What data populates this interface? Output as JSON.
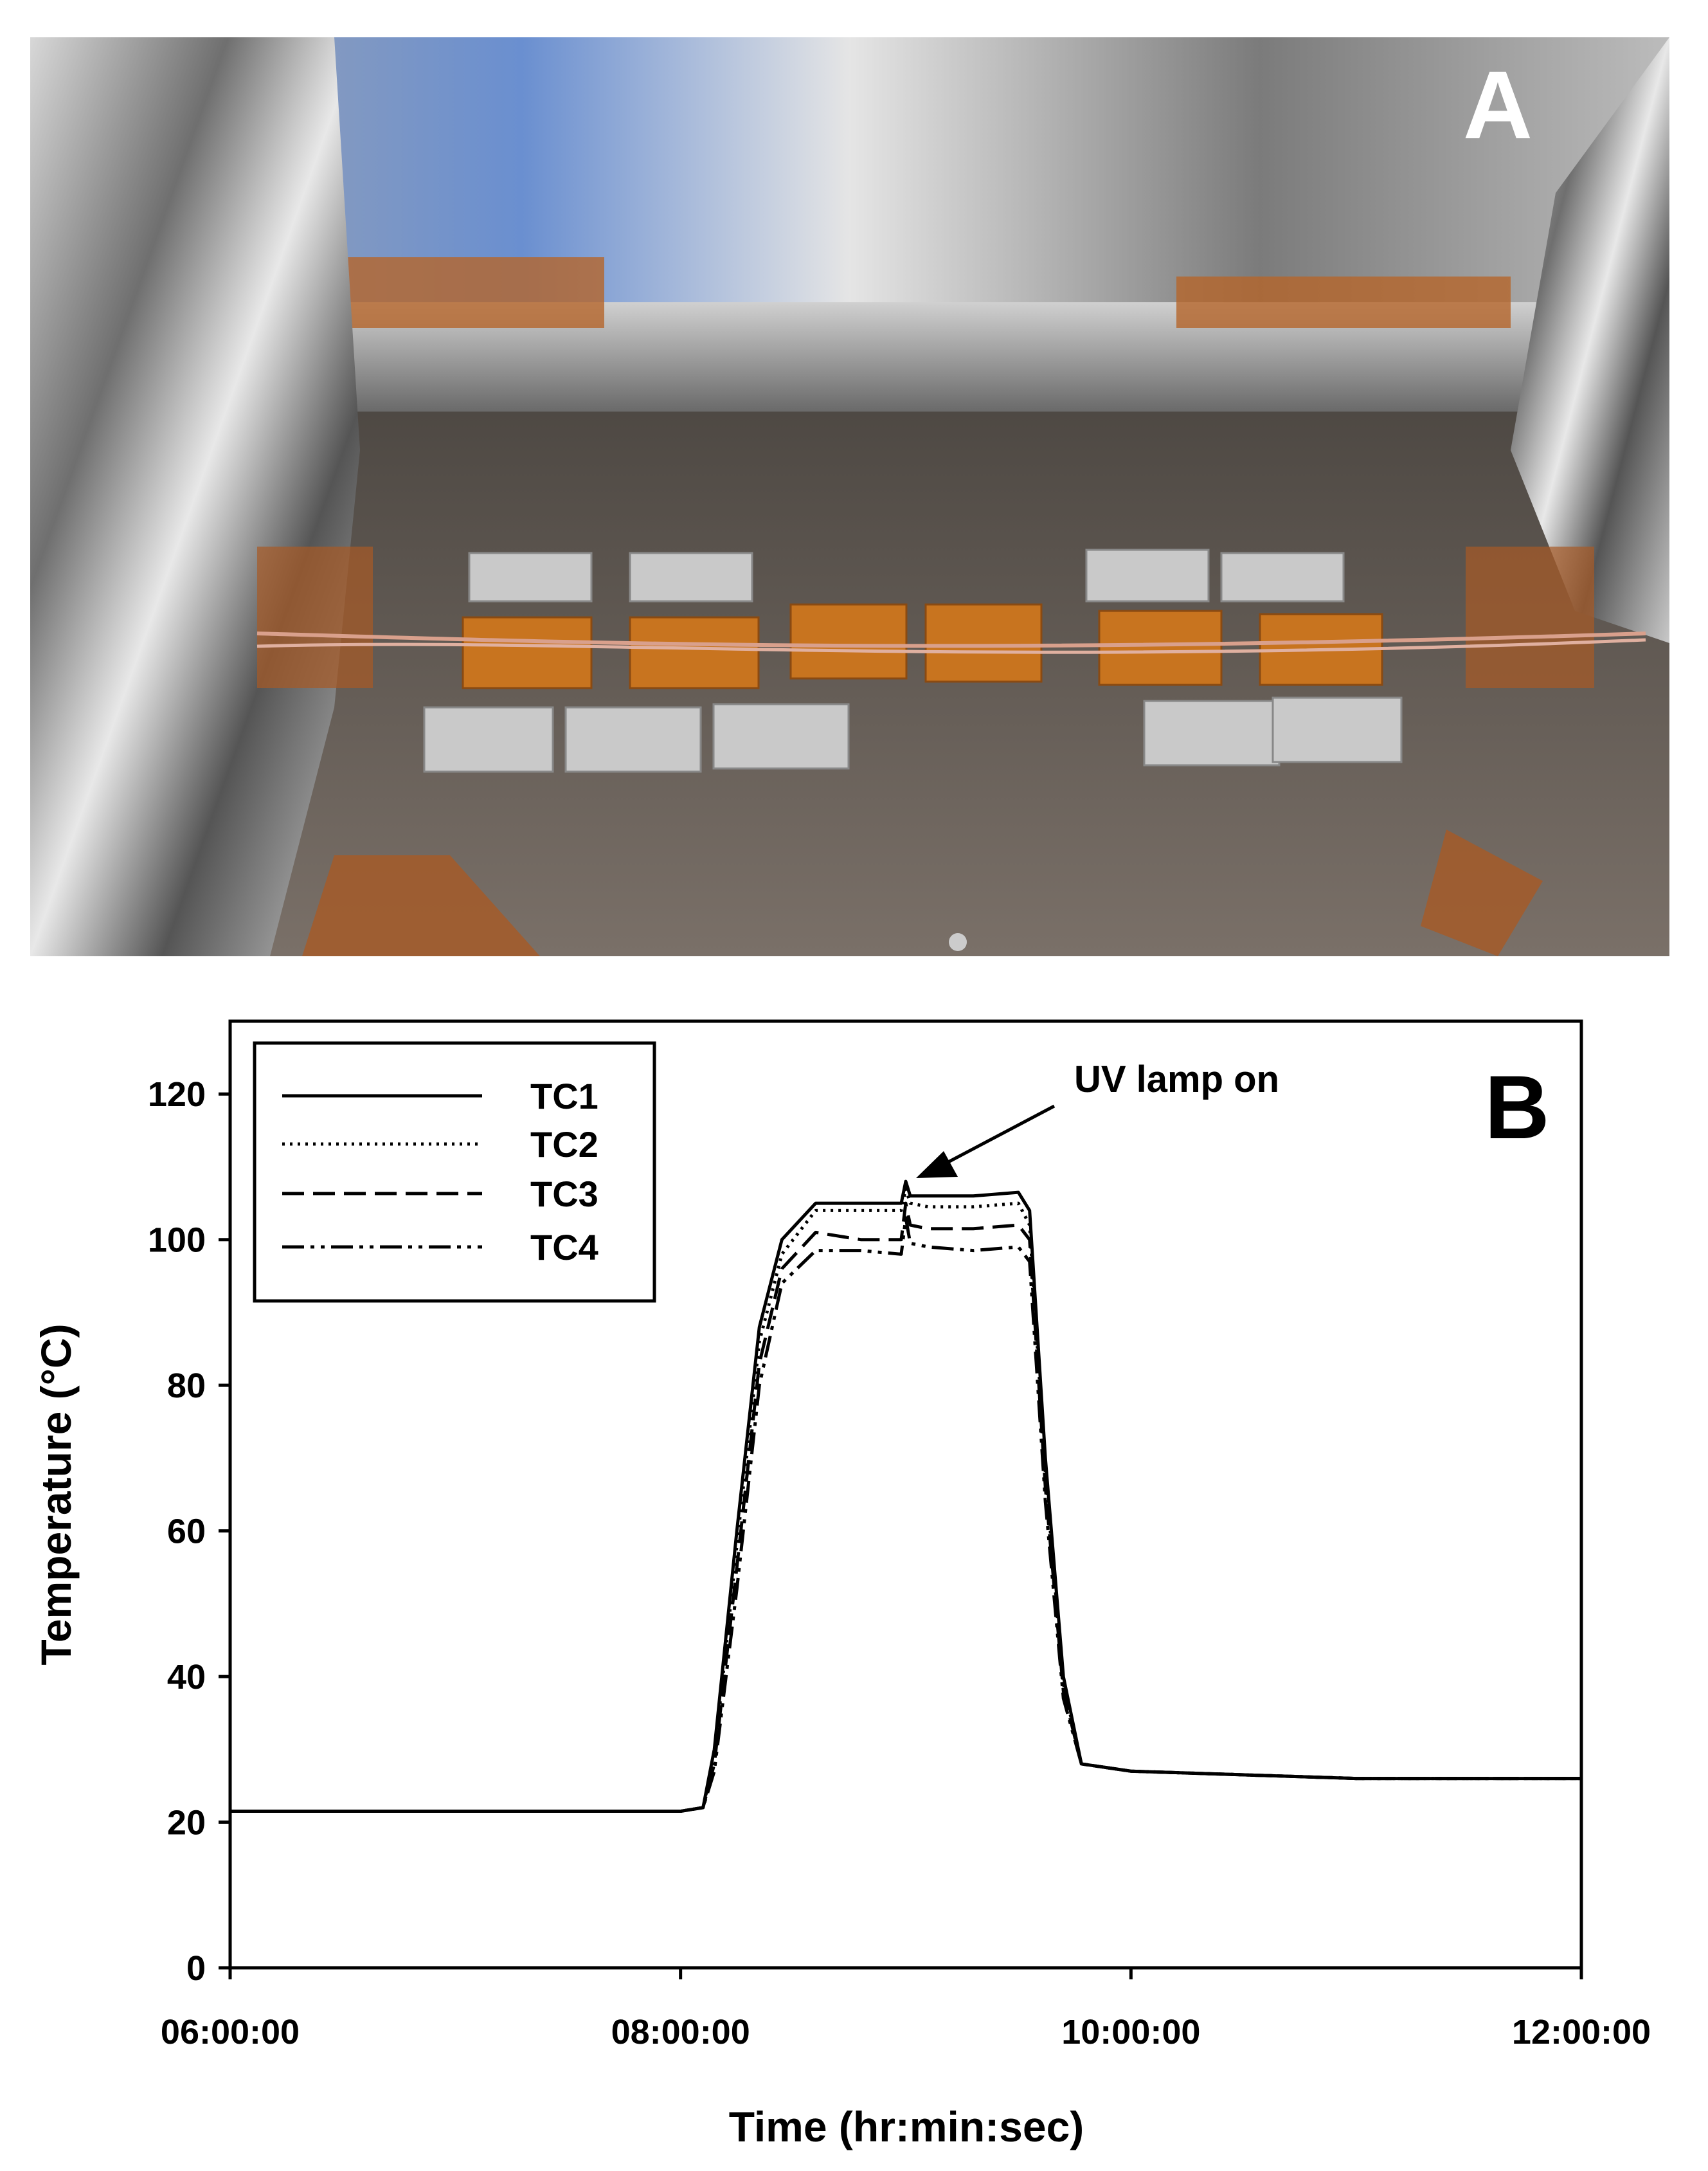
{
  "panel_a": {
    "label": "A"
  },
  "chart_data": {
    "type": "line",
    "panel_label": "B",
    "annotation": "UV lamp on",
    "x_label": "Time (hr:min:sec)",
    "y_label": "Temperature (°C)",
    "xlim": [
      6,
      12
    ],
    "xticks": [
      {
        "value": 6,
        "label": "06:00:00"
      },
      {
        "value": 8,
        "label": "08:00:00"
      },
      {
        "value": 10,
        "label": "10:00:00"
      },
      {
        "value": 12,
        "label": "12:00:00"
      }
    ],
    "ylim": [
      0,
      130
    ],
    "yticks": [
      0,
      20,
      40,
      60,
      80,
      100,
      120
    ],
    "legend": "upper left",
    "x": [
      6,
      7,
      8,
      8.1,
      8.15,
      8.25,
      8.35,
      8.45,
      8.6,
      8.8,
      8.98,
      9.0,
      9.02,
      9.1,
      9.3,
      9.5,
      9.55,
      9.62,
      9.7,
      9.78,
      10,
      11,
      12
    ],
    "series": [
      {
        "name": "TC1",
        "color": "#000000",
        "dash": "solid",
        "values": [
          21.5,
          21.5,
          21.5,
          22,
          30,
          60,
          88,
          100,
          105,
          105,
          105,
          108,
          106,
          106,
          106,
          106.5,
          104,
          70,
          40,
          28,
          27,
          26,
          26
        ]
      },
      {
        "name": "TC2",
        "color": "#000000",
        "dash": "dotted",
        "values": [
          21.5,
          21.5,
          21.5,
          22,
          29,
          58,
          86,
          98,
          104,
          104,
          104,
          107,
          105,
          104.5,
          104.5,
          105,
          102,
          68,
          39,
          28,
          27,
          26,
          26
        ]
      },
      {
        "name": "TC3",
        "color": "#000000",
        "dash": "dashed",
        "values": [
          21.5,
          21.5,
          21.5,
          22,
          28,
          55,
          83,
          96,
          101,
          100,
          100,
          105,
          102,
          101.5,
          101.5,
          102,
          100,
          66,
          38,
          28,
          27,
          26,
          26
        ]
      },
      {
        "name": "TC4",
        "color": "#000000",
        "dash": "dashdotdot",
        "values": [
          21.5,
          21.5,
          21.5,
          22,
          27,
          52,
          80,
          94,
          98.5,
          98.5,
          98,
          103,
          99.5,
          99,
          98.5,
          99,
          97,
          64,
          37,
          28,
          27,
          26,
          26
        ]
      }
    ]
  }
}
